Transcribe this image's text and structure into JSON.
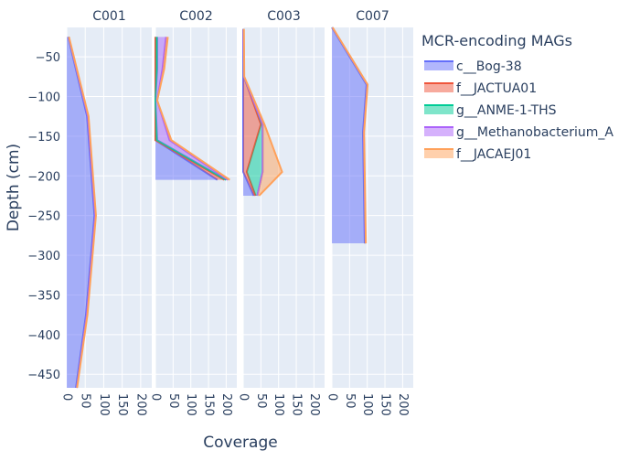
{
  "chart_data": {
    "type": "area",
    "xlabel": "Coverage",
    "ylabel": "Depth (cm)",
    "xlim": [
      0,
      230
    ],
    "ylim": [
      -467,
      -13
    ],
    "x_ticks": [
      0,
      50,
      100,
      150,
      200
    ],
    "y_ticks": [
      -50,
      -100,
      -150,
      -200,
      -250,
      -300,
      -350,
      -400,
      -450
    ],
    "y_tick_labels": [
      "−50",
      "−100",
      "−150",
      "−200",
      "−250",
      "−300",
      "−350",
      "−400",
      "−450"
    ],
    "grid": true,
    "legend": {
      "title": "MCR-encoding MAGs",
      "position": "top-right",
      "entries": [
        {
          "name": "c__Bog-38",
          "color": "#636efa"
        },
        {
          "name": "f__JACTUA01",
          "color": "#EF553B"
        },
        {
          "name": "g__ANME-1-THS",
          "color": "#00cc96"
        },
        {
          "name": "g__Methanobacterium_A",
          "color": "#ab63fa"
        },
        {
          "name": "f__JACAEJ01",
          "color": "#FFA15A"
        }
      ]
    },
    "facets": [
      {
        "title": "C001",
        "depths": [
          -25,
          -125,
          -250,
          -375,
          -467
        ],
        "series": [
          {
            "name": "c__Bog-38",
            "values": [
              4,
              55,
              75,
              52,
              25
            ]
          },
          {
            "name": "f__JACTUA01",
            "values": [
              5,
              57,
              77,
              54,
              27
            ]
          },
          {
            "name": "g__ANME-1-THS",
            "values": [
              5,
              57,
              77,
              54,
              27
            ]
          },
          {
            "name": "g__Methanobacterium_A",
            "values": [
              5,
              57,
              77,
              54,
              27
            ]
          },
          {
            "name": "f__JACAEJ01",
            "values": [
              6,
              59,
              79,
              56,
              28
            ]
          }
        ]
      },
      {
        "title": "C002",
        "depths": [
          -25,
          -65,
          -105,
          -155,
          -205
        ],
        "series": [
          {
            "name": "c__Bog-38",
            "values": [
              0,
              0,
              0,
              0,
              175
            ]
          },
          {
            "name": "f__JACTUA01",
            "values": [
              0,
              0,
              0,
              0,
              195
            ]
          },
          {
            "name": "g__ANME-1-THS",
            "values": [
              5,
              5,
              0,
              5,
              200
            ]
          },
          {
            "name": "g__Methanobacterium_A",
            "values": [
              30,
              20,
              5,
              40,
              205
            ]
          },
          {
            "name": "f__JACAEJ01",
            "values": [
              35,
              25,
              5,
              45,
              210
            ]
          }
        ]
      },
      {
        "title": "C003",
        "depths": [
          -15,
          -75,
          -135,
          -195,
          -225
        ],
        "series": [
          {
            "name": "c__Bog-38",
            "values": [
              0,
              0,
              0,
              0,
              30
            ]
          },
          {
            "name": "f__JACTUA01",
            "values": [
              1,
              2,
              50,
              10,
              35
            ]
          },
          {
            "name": "g__ANME-1-THS",
            "values": [
              1,
              2,
              55,
              55,
              40
            ]
          },
          {
            "name": "g__Methanobacterium_A",
            "values": [
              1,
              2,
              55,
              55,
              40
            ]
          },
          {
            "name": "f__JACAEJ01",
            "values": [
              2,
              3,
              60,
              110,
              45
            ]
          }
        ]
      },
      {
        "title": "C007",
        "depths": [
          -13,
          -85,
          -145,
          -285
        ],
        "series": [
          {
            "name": "c__Bog-38",
            "values": [
              0,
              98,
              88,
              93
            ]
          },
          {
            "name": "f__JACTUA01",
            "values": [
              1,
              100,
              90,
              95
            ]
          },
          {
            "name": "g__ANME-1-THS",
            "values": [
              1,
              100,
              90,
              95
            ]
          },
          {
            "name": "g__Methanobacterium_A",
            "values": [
              1,
              100,
              90,
              95
            ]
          },
          {
            "name": "f__JACAEJ01",
            "values": [
              2,
              101,
              91,
              96
            ]
          }
        ]
      }
    ]
  }
}
